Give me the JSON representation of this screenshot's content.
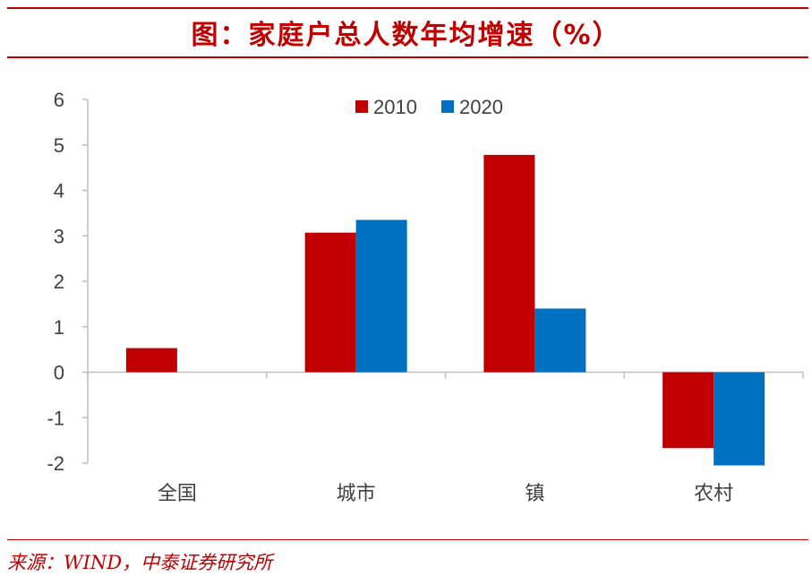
{
  "title": "图：家庭户总人数年均增速（%）",
  "source": "来源：WIND，中泰证券研究所",
  "colors": {
    "accent": "#c00000",
    "series_2010": "#c00000",
    "series_2020": "#0070c0",
    "axis": "#bfbfbf",
    "text": "#404040"
  },
  "chart_data": {
    "type": "bar",
    "categories": [
      "全国",
      "城市",
      "镇",
      "农村"
    ],
    "series": [
      {
        "name": "2010",
        "values": [
          0.53,
          3.07,
          4.78,
          -1.67
        ]
      },
      {
        "name": "2020",
        "values": [
          0.0,
          3.35,
          1.4,
          -2.05
        ]
      }
    ],
    "ylim": [
      -2,
      6
    ],
    "yticks": [
      "6",
      "5",
      "4",
      "3",
      "2",
      "1",
      "0",
      "-1",
      "-2"
    ],
    "legend": "top-center",
    "grid": false
  }
}
